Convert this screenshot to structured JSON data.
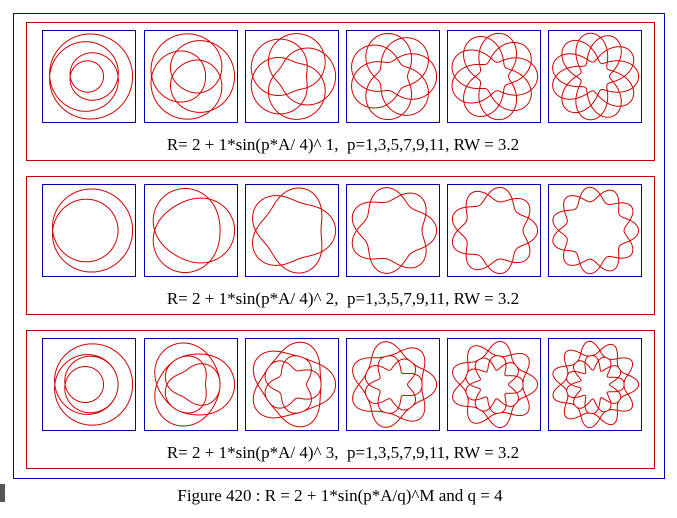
{
  "panels": [
    {
      "caption": "R= 2 + 1*sin(p*A/ 4)^ 1,  p=1,3,5,7,9,11, RW = 3.2"
    },
    {
      "caption": "R= 2 + 1*sin(p*A/ 4)^ 2,  p=1,3,5,7,9,11, RW = 3.2"
    },
    {
      "caption": "R= 2 + 1*sin(p*A/ 4)^ 3,  p=1,3,5,7,9,11, RW = 3.2"
    }
  ],
  "figure_caption": "Figure 420 : R = 2 + 1*sin(p*A/q)^M and q = 4"
}
